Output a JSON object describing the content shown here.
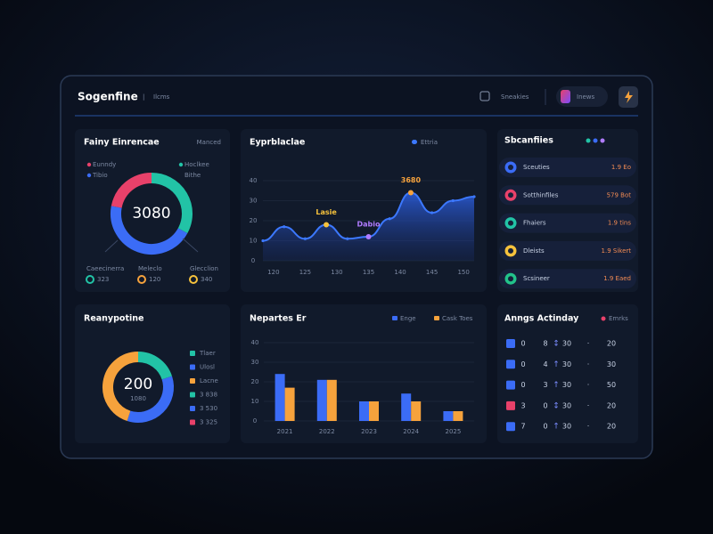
{
  "header": {
    "title": "Sogenfine",
    "nav": "Ilcms",
    "action": "Sneakies",
    "user": "Inews"
  },
  "summary": {
    "menu": "Manced",
    "note": "Bithe",
    "stats": [
      {
        "label": "Caeecinerra",
        "value": "323",
        "color": "#22c3a6"
      },
      {
        "label": "Meleclo",
        "value": "120",
        "color": "#f6a23c"
      },
      {
        "label": "Glecclion",
        "value": "340",
        "color": "#f6c23c"
      }
    ]
  },
  "sources": {
    "title": "Sbcanfiies",
    "items": [
      {
        "name": "Sceuties",
        "value": "1.9 Eo",
        "color": "#3b6cf6"
      },
      {
        "name": "Sotthinfiles",
        "value": "579 Bot",
        "color": "#e8416a"
      },
      {
        "name": "Fhaiers",
        "value": "1.9 tins",
        "color": "#22c3a6"
      },
      {
        "name": "Dleists",
        "value": "1.9 Sikert",
        "color": "#f6c23c"
      },
      {
        "name": "Scsineer",
        "value": "1.9 Eaed",
        "color": "#22c38a"
      }
    ]
  },
  "retention": {
    "legend": [
      {
        "label": "3 838",
        "color": "#22c3a6"
      },
      {
        "label": "3 530",
        "color": "#3b6cf6"
      },
      {
        "label": "3 325",
        "color": "#e8416a"
      }
    ]
  },
  "activity": {
    "title": "Anngs Actinday",
    "tag": "Emrks",
    "rows": [
      {
        "color": "#3b6cf6",
        "cells": [
          "0",
          "8",
          "↕",
          "30",
          "·",
          "20"
        ]
      },
      {
        "color": "#3b6cf6",
        "cells": [
          "0",
          "4",
          "↑",
          "30",
          "·",
          "30"
        ]
      },
      {
        "color": "#3b6cf6",
        "cells": [
          "0",
          "3",
          "↑",
          "30",
          "·",
          "50"
        ]
      },
      {
        "color": "#e8416a",
        "cells": [
          "3",
          "0",
          "↕",
          "30",
          "·",
          "20"
        ]
      },
      {
        "color": "#3b6cf6",
        "cells": [
          "7",
          "0",
          "↑",
          "30",
          "·",
          "20"
        ]
      }
    ]
  },
  "chart_data": [
    {
      "type": "pie",
      "title": "Fainy Einrencae",
      "center_label": "3080",
      "categories": [
        "Hoclkee",
        "Tibio",
        "Eunndy"
      ],
      "values": [
        33,
        45,
        22
      ],
      "colors": [
        "#22c3a6",
        "#3b6cf6",
        "#e8416a"
      ]
    },
    {
      "type": "area",
      "title": "Eyprblaclae",
      "x": [
        0,
        1,
        2,
        3,
        4,
        5,
        6,
        7,
        8,
        9,
        10
      ],
      "xlim": [
        0,
        10
      ],
      "xticks": [
        {
          "value": 0.5,
          "label": "120"
        },
        {
          "value": 2,
          "label": "125"
        },
        {
          "value": 3.5,
          "label": "130"
        },
        {
          "value": 5,
          "label": "135"
        },
        {
          "value": 6.5,
          "label": "140"
        },
        {
          "value": 8,
          "label": "145"
        },
        {
          "value": 9.5,
          "label": "150"
        }
      ],
      "ylim": [
        0,
        40
      ],
      "yticks": [
        0,
        10,
        20,
        30,
        40
      ],
      "series": [
        {
          "name": "Ettria",
          "color": "#3c78ff",
          "values": [
            10,
            17,
            11,
            18,
            11,
            12,
            21,
            34,
            24,
            30,
            32
          ]
        }
      ],
      "annotations": [
        {
          "x": 3,
          "text": "Lasie",
          "color": "#f6c23c"
        },
        {
          "x": 5,
          "text": "Dabio",
          "color": "#b07cff"
        },
        {
          "x": 7,
          "text": "3680",
          "color": "#f6a23c"
        }
      ]
    },
    {
      "type": "pie",
      "title": "Reanypotine",
      "center_label": "200",
      "subtitle": "1080",
      "categories": [
        "Tlaer",
        "Ulosl",
        "Lacne"
      ],
      "values": [
        20,
        35,
        45
      ],
      "colors": [
        "#22c3a6",
        "#3b6cf6",
        "#f6a23c"
      ]
    },
    {
      "type": "bar",
      "title": "Nepartes Er",
      "categories": [
        "2021",
        "2022",
        "2023",
        "2024",
        "2025"
      ],
      "ylim": [
        0,
        40
      ],
      "yticks": [
        0,
        10,
        20,
        30,
        40
      ],
      "series": [
        {
          "name": "Enge",
          "color": "#3b6cf6",
          "values": [
            24,
            21,
            10,
            14,
            5
          ]
        },
        {
          "name": "Cask Toes",
          "color": "#f6a23c",
          "values": [
            17,
            21,
            10,
            10,
            5
          ]
        }
      ]
    }
  ]
}
